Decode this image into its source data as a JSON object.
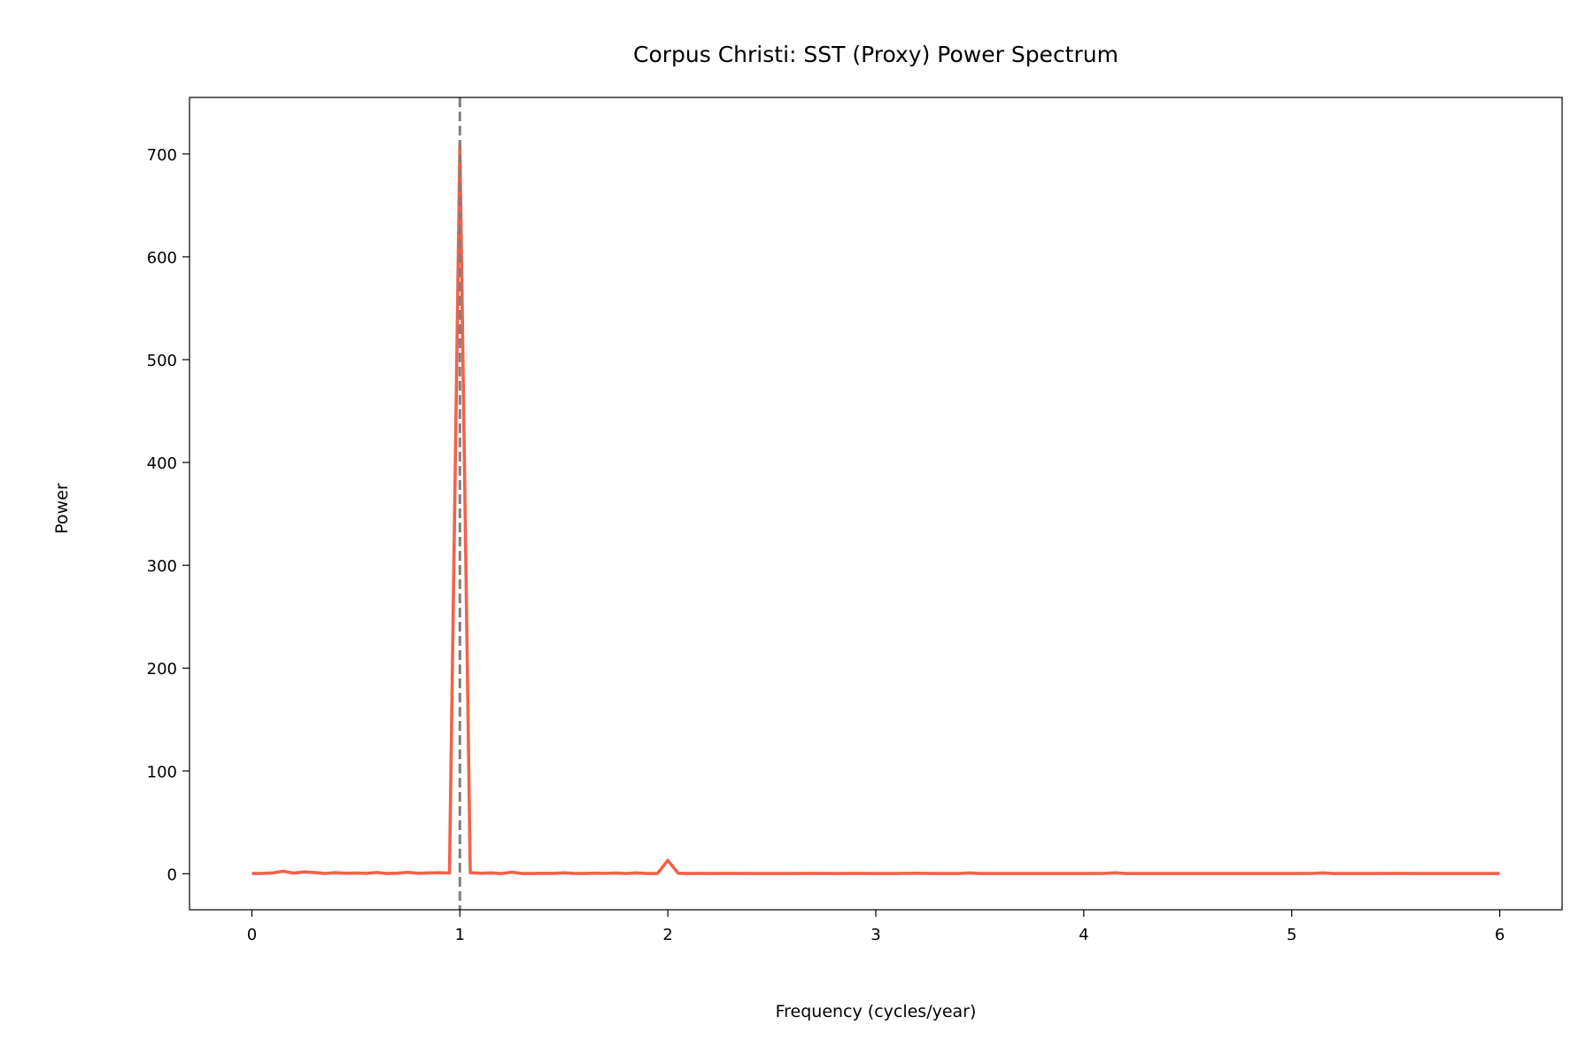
{
  "chart_data": {
    "type": "line",
    "title": "Corpus Christi: SST (Proxy) Power Spectrum",
    "xlabel": "Frequency (cycles/year)",
    "ylabel": "Power",
    "xlim": [
      -0.3,
      6.3
    ],
    "ylim": [
      -35,
      755
    ],
    "xticks": [
      0,
      1,
      2,
      3,
      4,
      5,
      6
    ],
    "yticks": [
      0,
      100,
      200,
      300,
      400,
      500,
      600,
      700
    ],
    "grid": false,
    "legend": "none",
    "vline": {
      "x": 1,
      "style": "dashed",
      "color": "#808080"
    },
    "series": [
      {
        "color": "#f4624a",
        "points": [
          [
            0,
            0.3
          ],
          [
            0.05,
            0.4
          ],
          [
            0.1,
            0.8
          ],
          [
            0.15,
            2.5
          ],
          [
            0.2,
            0.6
          ],
          [
            0.25,
            1.8
          ],
          [
            0.3,
            1.2
          ],
          [
            0.35,
            0.3
          ],
          [
            0.4,
            1.0
          ],
          [
            0.45,
            0.5
          ],
          [
            0.5,
            0.7
          ],
          [
            0.55,
            0.4
          ],
          [
            0.6,
            1.2
          ],
          [
            0.65,
            0.3
          ],
          [
            0.7,
            0.6
          ],
          [
            0.75,
            1.4
          ],
          [
            0.8,
            0.5
          ],
          [
            0.85,
            0.8
          ],
          [
            0.9,
            1.0
          ],
          [
            0.95,
            0.7
          ],
          [
            1.0,
            710
          ],
          [
            1.05,
            1.0
          ],
          [
            1.1,
            0.5
          ],
          [
            1.15,
            0.8
          ],
          [
            1.2,
            0.3
          ],
          [
            1.25,
            1.5
          ],
          [
            1.3,
            0.3
          ],
          [
            1.35,
            0.3
          ],
          [
            1.4,
            0.5
          ],
          [
            1.45,
            0.4
          ],
          [
            1.5,
            0.9
          ],
          [
            1.55,
            0.4
          ],
          [
            1.6,
            0.3
          ],
          [
            1.65,
            0.6
          ],
          [
            1.7,
            0.4
          ],
          [
            1.75,
            0.7
          ],
          [
            1.8,
            0.3
          ],
          [
            1.85,
            0.8
          ],
          [
            1.9,
            0.3
          ],
          [
            1.95,
            0.3
          ],
          [
            2.0,
            13
          ],
          [
            2.05,
            0.5
          ],
          [
            2.1,
            0.3
          ],
          [
            2.15,
            0.4
          ],
          [
            2.2,
            0.3
          ],
          [
            2.3,
            0.4
          ],
          [
            2.4,
            0.3
          ],
          [
            2.5,
            0.3
          ],
          [
            2.6,
            0.3
          ],
          [
            2.7,
            0.4
          ],
          [
            2.8,
            0.3
          ],
          [
            2.9,
            0.4
          ],
          [
            3.0,
            0.3
          ],
          [
            3.1,
            0.3
          ],
          [
            3.2,
            0.5
          ],
          [
            3.3,
            0.3
          ],
          [
            3.4,
            0.3
          ],
          [
            3.45,
            0.8
          ],
          [
            3.5,
            0.3
          ],
          [
            3.6,
            0.3
          ],
          [
            3.7,
            0.3
          ],
          [
            3.8,
            0.3
          ],
          [
            3.9,
            0.3
          ],
          [
            4.0,
            0.3
          ],
          [
            4.1,
            0.4
          ],
          [
            4.15,
            0.9
          ],
          [
            4.2,
            0.3
          ],
          [
            4.3,
            0.3
          ],
          [
            4.4,
            0.3
          ],
          [
            4.5,
            0.3
          ],
          [
            4.6,
            0.3
          ],
          [
            4.7,
            0.3
          ],
          [
            4.8,
            0.3
          ],
          [
            4.9,
            0.3
          ],
          [
            5.0,
            0.3
          ],
          [
            5.1,
            0.4
          ],
          [
            5.15,
            0.8
          ],
          [
            5.2,
            0.3
          ],
          [
            5.3,
            0.3
          ],
          [
            5.4,
            0.3
          ],
          [
            5.5,
            0.4
          ],
          [
            5.6,
            0.3
          ],
          [
            5.7,
            0.3
          ],
          [
            5.8,
            0.3
          ],
          [
            5.9,
            0.3
          ],
          [
            6.0,
            0.3
          ]
        ]
      }
    ]
  }
}
